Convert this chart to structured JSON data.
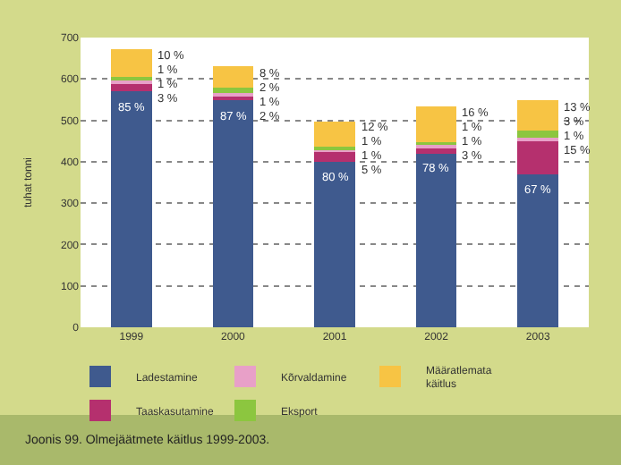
{
  "chart_data": {
    "type": "bar",
    "stacked": true,
    "ylabel": "tuhat tonni",
    "categories": [
      "1999",
      "2000",
      "2001",
      "2002",
      "2003"
    ],
    "series": [
      {
        "name": "Ladestamine",
        "color": "#3f5a8e",
        "values": [
          570,
          548,
          400,
          420,
          370
        ]
      },
      {
        "name": "Taaskasutamine",
        "color": "#b5306e",
        "values": [
          20,
          13,
          25,
          16,
          83
        ]
      },
      {
        "name": "Kõrvaldamine",
        "color": "#e8a0c8",
        "values": [
          7,
          6,
          5,
          5,
          6
        ]
      },
      {
        "name": "Eksport",
        "color": "#8cc63f",
        "values": [
          7,
          13,
          7,
          6,
          17
        ]
      },
      {
        "name": "Määratlemata käitlus",
        "color": "#f7c444",
        "values": [
          67,
          50,
          60,
          86,
          72
        ]
      }
    ],
    "ylim": [
      0,
      700
    ],
    "yticks": [
      0,
      100,
      200,
      300,
      400,
      500,
      600,
      700
    ],
    "grid": "y",
    "legend": "bottom",
    "annotations": [
      {
        "text": "85 %",
        "x": "1999",
        "y": 570
      },
      {
        "text": "87 %",
        "x": "2000",
        "y": 548
      },
      {
        "text": "80 %",
        "x": "2001",
        "y": 400
      },
      {
        "text": "78 %",
        "x": "2002",
        "y": 420
      },
      {
        "text": "67 %",
        "x": "2003",
        "y": 370
      },
      {
        "text": "10 %",
        "x": "1999",
        "y": 671
      },
      {
        "text": "1 %",
        "x": "1999",
        "y": 604
      },
      {
        "text": "1 %",
        "x": "1999",
        "y": 597
      },
      {
        "text": "3 %",
        "x": "1999",
        "y": 590
      },
      {
        "text": "8 %",
        "x": "2000",
        "y": 630
      },
      {
        "text": "2 %",
        "x": "2000",
        "y": 580
      },
      {
        "text": "1 %",
        "x": "2000",
        "y": 567
      },
      {
        "text": "2 %",
        "x": "2000",
        "y": 561
      },
      {
        "text": "12 %",
        "x": "2001",
        "y": 497
      },
      {
        "text": "1 %",
        "x": "2001",
        "y": 437
      },
      {
        "text": "1 %",
        "x": "2001",
        "y": 430
      },
      {
        "text": "5 %",
        "x": "2001",
        "y": 425
      },
      {
        "text": "16 %",
        "x": "2002",
        "y": 533
      },
      {
        "text": "1 %",
        "x": "2002",
        "y": 447
      },
      {
        "text": "1 %",
        "x": "2002",
        "y": 441
      },
      {
        "text": "3 %",
        "x": "2002",
        "y": 436
      },
      {
        "text": "13 %",
        "x": "2003",
        "y": 548
      },
      {
        "text": "3 %",
        "x": "2003",
        "y": 476
      },
      {
        "text": "1 %",
        "x": "2003",
        "y": 459
      },
      {
        "text": "15 %",
        "x": "2003",
        "y": 453
      },
      "Joonis 99. Olmejäätmete käitlus 1999-2003."
    ]
  }
}
